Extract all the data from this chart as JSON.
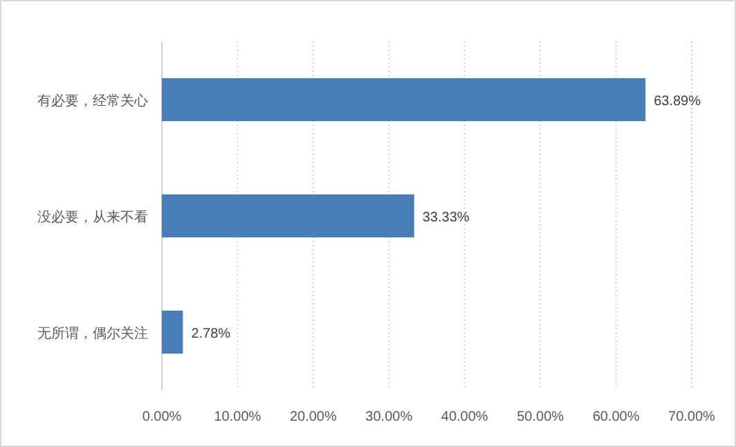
{
  "chart_data": {
    "type": "bar",
    "orientation": "horizontal",
    "categories": [
      "有必要，经常关心",
      "没必要，从来不看",
      "无所谓，偶尔关注"
    ],
    "values": [
      63.89,
      33.33,
      2.78
    ],
    "value_labels": [
      "63.89%",
      "33.33%",
      "2.78%"
    ],
    "color": "#4a7ebb",
    "xlim": [
      0,
      70
    ],
    "xticks": [
      {
        "value": 0,
        "label": "0.00%"
      },
      {
        "value": 10,
        "label": "10.00%"
      },
      {
        "value": 20,
        "label": "20.00%"
      },
      {
        "value": 30,
        "label": "30.00%"
      },
      {
        "value": 40,
        "label": "40.00%"
      },
      {
        "value": 50,
        "label": "50.00%"
      },
      {
        "value": 60,
        "label": "60.00%"
      },
      {
        "value": 70,
        "label": "70.00%"
      }
    ],
    "grid": "x"
  }
}
